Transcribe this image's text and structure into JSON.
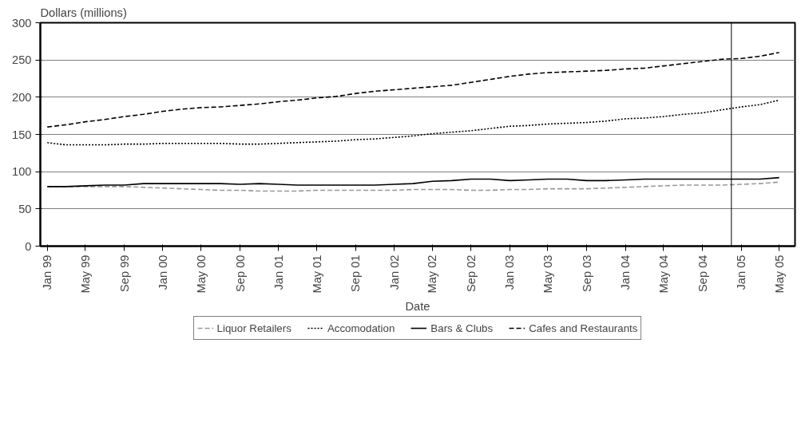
{
  "chart_data": {
    "type": "line",
    "xlabel": "Date",
    "ylabel": "Dollars (millions)",
    "x": [
      "1999-01",
      "1999-03",
      "1999-05",
      "1999-07",
      "1999-09",
      "1999-11",
      "2000-01",
      "2000-03",
      "2000-05",
      "2000-07",
      "2000-09",
      "2000-11",
      "2001-01",
      "2001-03",
      "2001-05",
      "2001-07",
      "2001-09",
      "2001-11",
      "2002-01",
      "2002-03",
      "2002-05",
      "2002-07",
      "2002-09",
      "2002-11",
      "2003-01",
      "2003-03",
      "2003-05",
      "2003-07",
      "2003-09",
      "2003-11",
      "2004-01",
      "2004-03",
      "2004-05",
      "2004-07",
      "2004-09",
      "2004-11",
      "2005-01",
      "2005-03",
      "2005-05"
    ],
    "series": [
      {
        "name": "Liquor Retailers",
        "color": "#999999",
        "line_style": "dashed",
        "values": [
          80,
          80,
          80,
          80,
          80,
          79,
          78,
          77,
          76,
          75,
          75,
          74,
          74,
          74,
          75,
          75,
          75,
          75,
          75,
          76,
          76,
          76,
          75,
          75,
          76,
          76,
          77,
          77,
          77,
          78,
          79,
          80,
          81,
          82,
          82,
          82,
          83,
          84,
          86
        ]
      },
      {
        "name": "Accomodation",
        "color": "#000000",
        "line_style": "dotted",
        "values": [
          139,
          136,
          136,
          136,
          137,
          137,
          138,
          138,
          138,
          138,
          137,
          137,
          138,
          139,
          140,
          141,
          143,
          144,
          146,
          148,
          151,
          153,
          155,
          158,
          161,
          162,
          164,
          165,
          166,
          168,
          171,
          172,
          174,
          177,
          179,
          183,
          187,
          190,
          196
        ]
      },
      {
        "name": "Bars & Clubs",
        "color": "#000000",
        "line_style": "solid",
        "values": [
          80,
          80,
          81,
          82,
          82,
          84,
          84,
          84,
          84,
          84,
          83,
          84,
          83,
          82,
          82,
          82,
          82,
          82,
          83,
          84,
          87,
          88,
          90,
          90,
          88,
          89,
          90,
          90,
          88,
          88,
          89,
          90,
          90,
          90,
          90,
          90,
          90,
          90,
          92
        ]
      },
      {
        "name": "Cafes and Restaurants",
        "color": "#000000",
        "line_style": "dashed",
        "values": [
          160,
          163,
          167,
          170,
          174,
          177,
          181,
          184,
          186,
          187,
          189,
          191,
          194,
          196,
          199,
          201,
          205,
          208,
          210,
          212,
          214,
          216,
          220,
          224,
          228,
          231,
          233,
          234,
          235,
          236,
          238,
          239,
          242,
          245,
          248,
          251,
          252,
          255,
          260
        ]
      }
    ],
    "xlim": [
      "1998-12-10",
      "2005-06-20"
    ],
    "xticks": [
      {
        "value": "1999-01",
        "label": "Jan 99"
      },
      {
        "value": "1999-05",
        "label": "May 99"
      },
      {
        "value": "1999-09",
        "label": "Sep 99"
      },
      {
        "value": "2000-01",
        "label": "Jan 00"
      },
      {
        "value": "2000-05",
        "label": "May 00"
      },
      {
        "value": "2000-09",
        "label": "Sep 00"
      },
      {
        "value": "2001-01",
        "label": "Jan 01"
      },
      {
        "value": "2001-05",
        "label": "May 01"
      },
      {
        "value": "2001-09",
        "label": "Sep 01"
      },
      {
        "value": "2002-01",
        "label": "Jan 02"
      },
      {
        "value": "2002-05",
        "label": "May 02"
      },
      {
        "value": "2002-09",
        "label": "Sep 02"
      },
      {
        "value": "2003-01",
        "label": "Jan 03"
      },
      {
        "value": "2003-05",
        "label": "May 03"
      },
      {
        "value": "2003-09",
        "label": "Sep 03"
      },
      {
        "value": "2004-01",
        "label": "Jan 04"
      },
      {
        "value": "2004-05",
        "label": "May 04"
      },
      {
        "value": "2004-09",
        "label": "Sep 04"
      },
      {
        "value": "2005-01",
        "label": "Jan 05"
      },
      {
        "value": "2005-05",
        "label": "May 05"
      }
    ],
    "ylim": [
      0,
      300
    ],
    "yticks": [
      0,
      50,
      100,
      150,
      200,
      250,
      300
    ],
    "ref_lines": [
      {
        "axis": "x",
        "value": "2004-12",
        "color": "#000000"
      }
    ],
    "grid": "y",
    "legend": "bottom"
  }
}
